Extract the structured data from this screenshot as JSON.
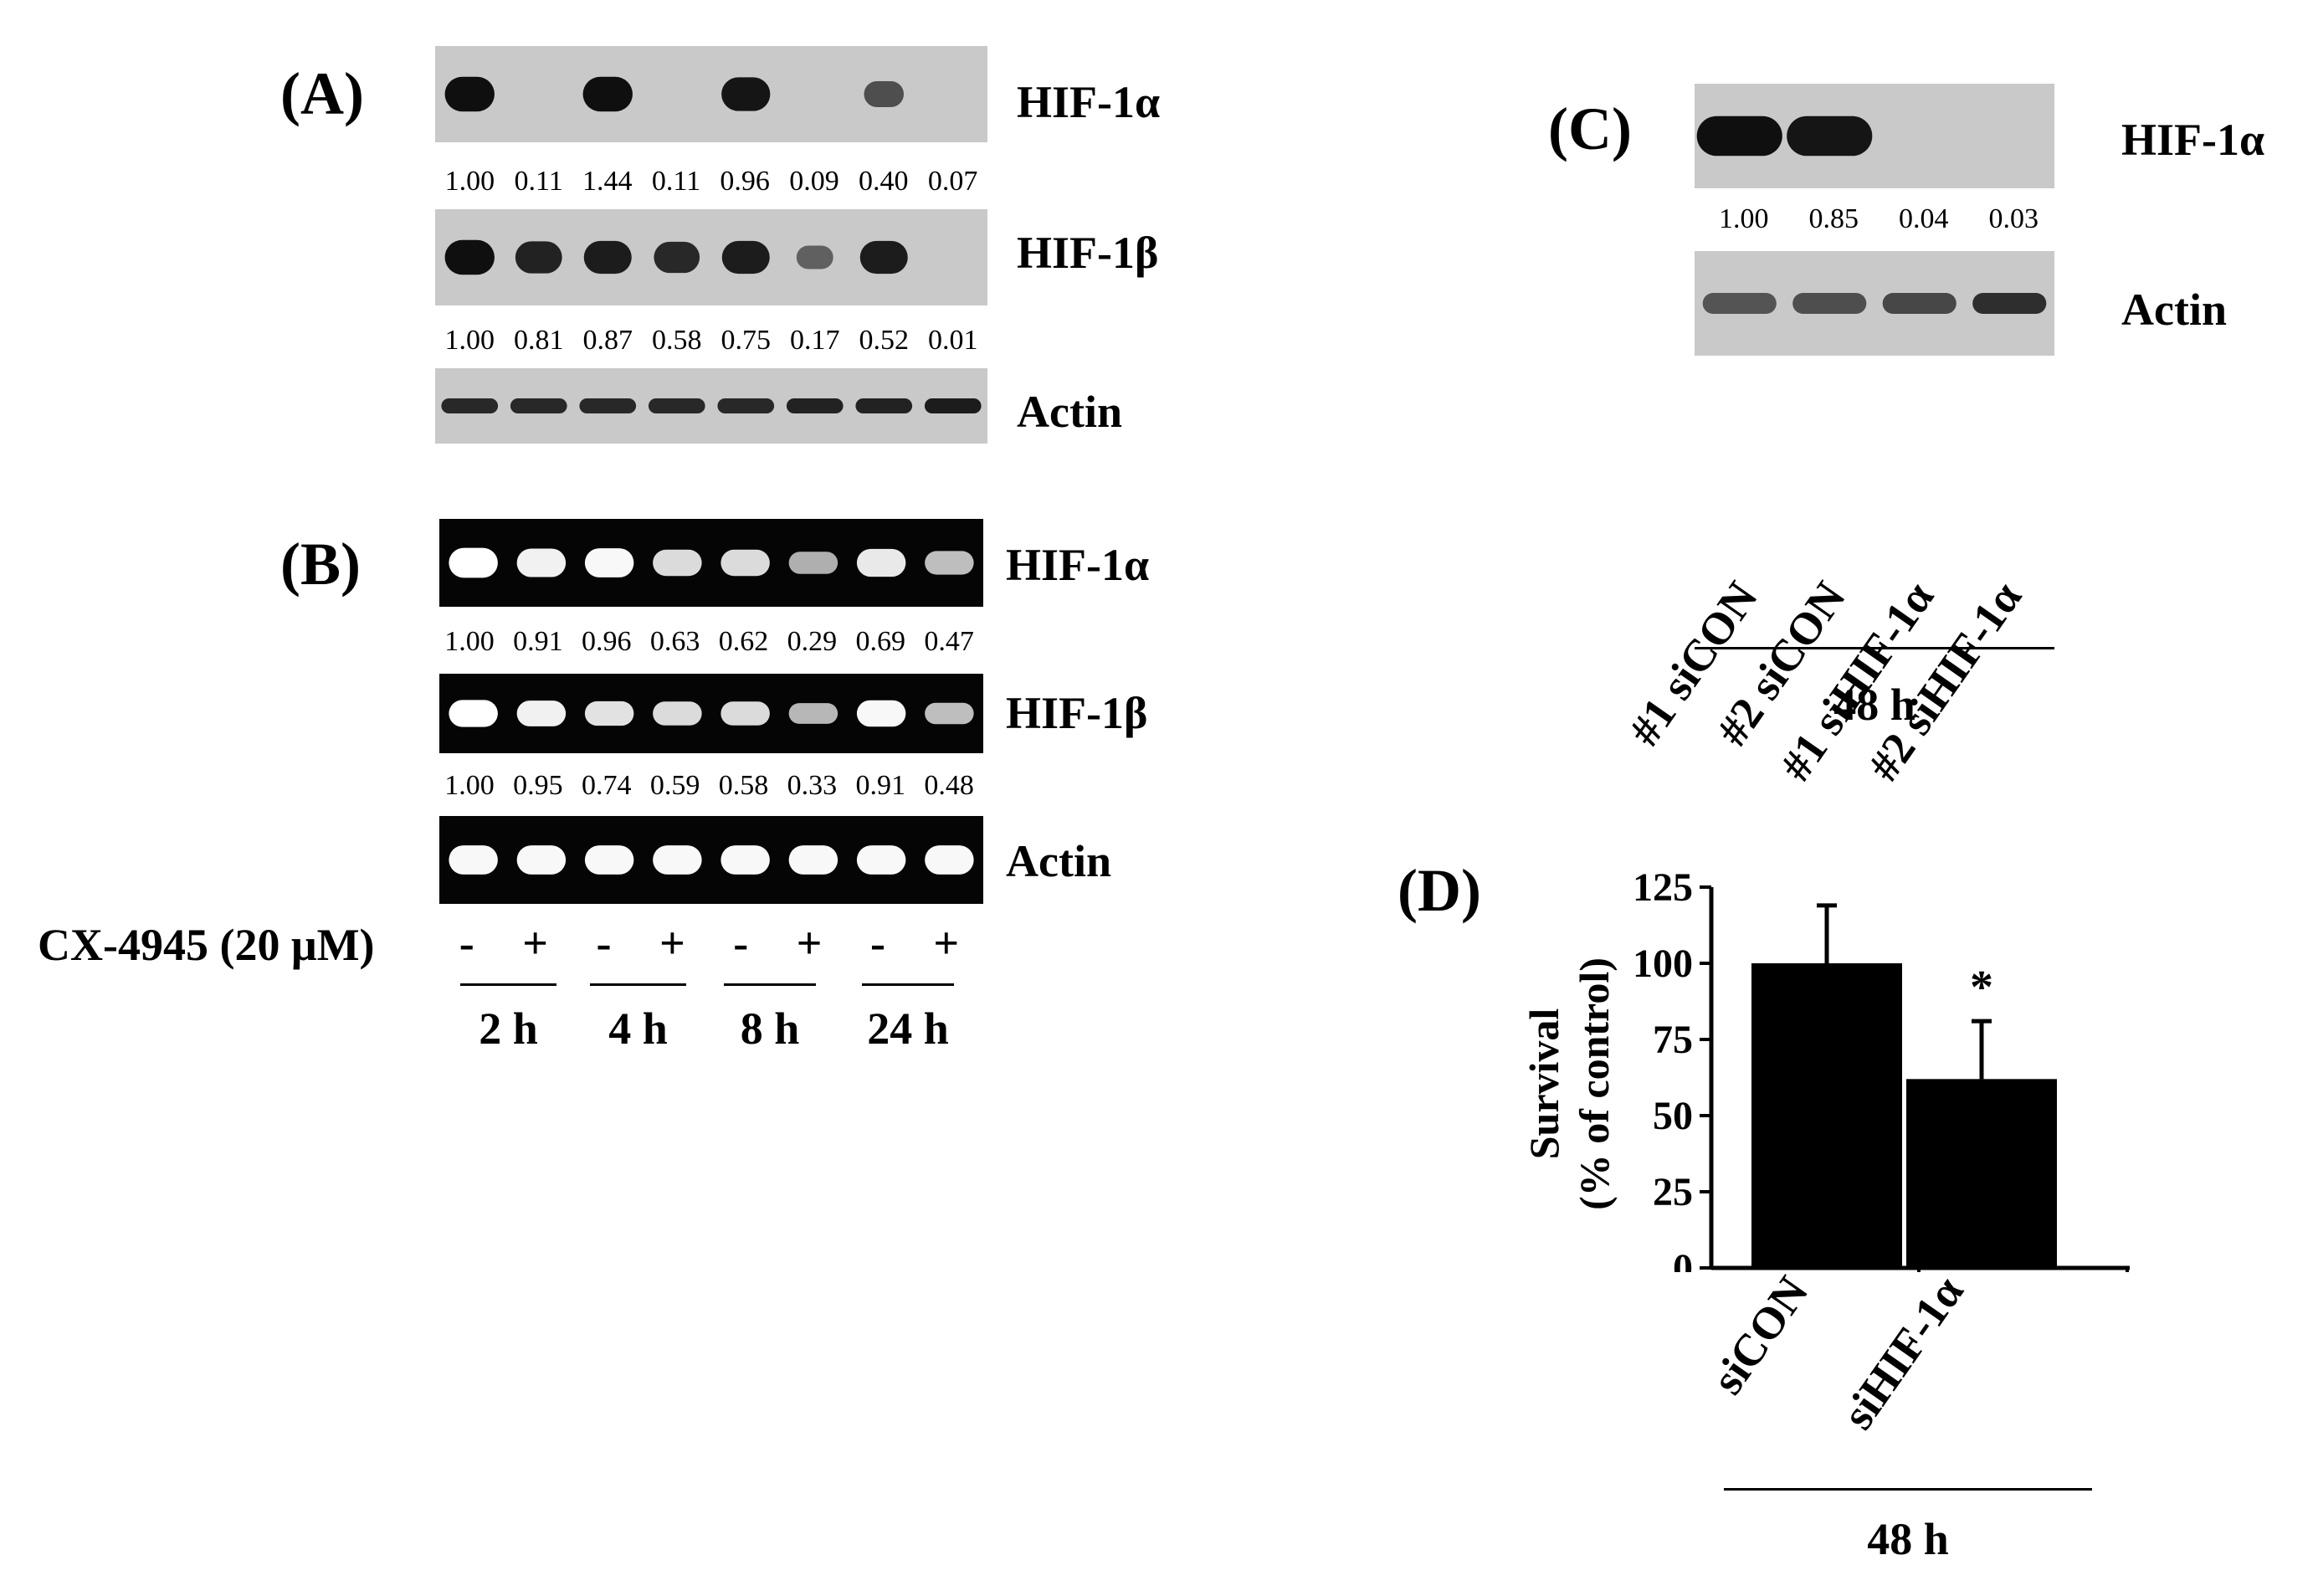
{
  "panelA": {
    "label": "(A)",
    "rows": [
      {
        "protein": "HIF-1α",
        "values": [
          "1.00",
          "0.11",
          "1.44",
          "0.11",
          "0.96",
          "0.09",
          "0.40",
          "0.07"
        ],
        "intensity": [
          1.0,
          0.0,
          1.0,
          0.0,
          0.95,
          0.0,
          0.5,
          0.0
        ]
      },
      {
        "protein": "HIF-1β",
        "values": [
          "1.00",
          "0.81",
          "0.87",
          "0.58",
          "0.75",
          "0.17",
          "0.52",
          "0.01"
        ],
        "intensity": [
          1.0,
          0.85,
          0.9,
          0.8,
          0.9,
          0.35,
          0.9,
          0.0
        ]
      },
      {
        "protein": "Actin",
        "values": [],
        "intensity": [
          0.8,
          0.8,
          0.8,
          0.8,
          0.8,
          0.85,
          0.85,
          0.9
        ]
      }
    ]
  },
  "panelB": {
    "label": "(B)",
    "rows": [
      {
        "protein": "HIF-1α",
        "values": [
          "1.00",
          "0.91",
          "0.96",
          "0.63",
          "0.62",
          "0.29",
          "0.69",
          "0.47"
        ],
        "intensity": [
          1.0,
          0.9,
          0.95,
          0.75,
          0.75,
          0.45,
          0.85,
          0.55
        ]
      },
      {
        "protein": "HIF-1β",
        "values": [
          "1.00",
          "0.95",
          "0.74",
          "0.59",
          "0.58",
          "0.33",
          "0.91",
          "0.48"
        ],
        "intensity": [
          1.0,
          0.9,
          0.8,
          0.75,
          0.75,
          0.5,
          0.95,
          0.55
        ]
      },
      {
        "protein": "Actin",
        "values": [],
        "intensity": [
          0.95,
          0.95,
          0.95,
          0.95,
          0.95,
          0.95,
          0.95,
          0.95
        ]
      }
    ],
    "treatment_label": "CX-4945 (20 μM)",
    "signs": [
      "-",
      "+",
      "-",
      "+",
      "-",
      "+",
      "-",
      "+"
    ],
    "times": [
      "2 h",
      "4 h",
      "8 h",
      "24 h"
    ]
  },
  "panelC": {
    "label": "(C)",
    "rows": [
      {
        "protein": "HIF-1α",
        "values": [
          "1.00",
          "0.85",
          "0.04",
          "0.03"
        ],
        "intensity": [
          1.0,
          0.95,
          0.0,
          0.0
        ]
      },
      {
        "protein": "Actin",
        "values": [],
        "intensity": [
          0.45,
          0.5,
          0.55,
          0.75
        ]
      }
    ],
    "lanes": [
      "#1 siCON",
      "#2 siCON",
      "#1 siHIF-1α",
      "#2 siHIF-1α"
    ],
    "time": "48 h"
  },
  "panelD": {
    "label": "(D)",
    "time": "48 h",
    "significance": "*",
    "chart_data": {
      "type": "bar",
      "categories": [
        "siCON",
        "siHIF-1α"
      ],
      "values": [
        100,
        62
      ],
      "errors": [
        19,
        19
      ],
      "ylabel": "Survival\n(% of control)",
      "ylim": [
        0,
        125
      ],
      "yticks": [
        0,
        25,
        50,
        75,
        100,
        125
      ],
      "grid": false
    }
  }
}
